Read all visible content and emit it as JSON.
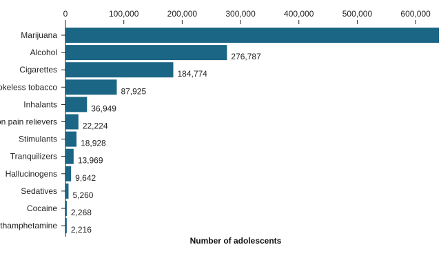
{
  "chart_data": {
    "type": "bar",
    "orientation": "horizontal",
    "title": "",
    "xlabel": "Number of adolescents",
    "ylabel": "",
    "xlim": [
      0,
      640000
    ],
    "x_ticks": [
      0,
      100000,
      200000,
      300000,
      400000,
      500000,
      600000
    ],
    "x_tick_labels": [
      "0",
      "100,000",
      "200,000",
      "300,000",
      "400,000",
      "500,000",
      "600,000"
    ],
    "categories": [
      "Marijuana",
      "Alcohol",
      "Cigarettes",
      "Smokeless tobacco",
      "Inhalants",
      "Prescription pain relievers",
      "Stimulants",
      "Tranquilizers",
      "Hallucinogens",
      "Sedatives",
      "Cocaine",
      "Methamphetamine"
    ],
    "values": [
      640000,
      276787,
      184774,
      87925,
      36949,
      22224,
      18928,
      13969,
      9642,
      5260,
      2268,
      2216
    ],
    "value_labels": [
      "",
      "276,787",
      "184,774",
      "87,925",
      "36,949",
      "22,224",
      "18,928",
      "13,969",
      "9,642",
      "5,260",
      "2,268",
      "2,216"
    ],
    "bar_color": "#1b6585",
    "grid": false,
    "legend": "none"
  }
}
